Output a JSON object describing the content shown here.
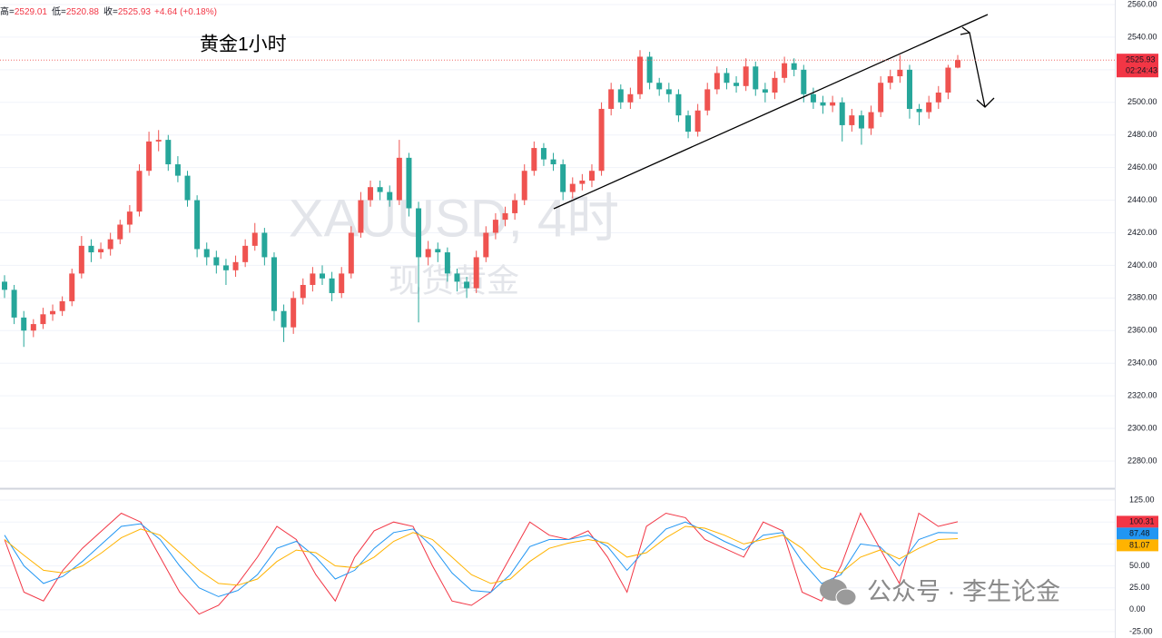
{
  "chart_data": [
    {
      "type": "candlestick",
      "header": {
        "items": [
          {
            "label": "高="
          },
          {
            "label": "低="
          },
          {
            "label": "收="
          }
        ],
        "change": "+4.64 (+0.18%)"
      },
      "annotation": "黄金1小时",
      "watermark": {
        "symbol": "XAUUSD, 4时",
        "name": "现货黄金",
        "account": "公众号 · 李生论金"
      },
      "countdown": "02:24:43",
      "up_color": "#ef5350",
      "down_color": "#26a69a",
      "ylim": [
        2263.85,
        2562.78
      ],
      "yticks": [
        {
          "value": 2280,
          "label": "2280.00"
        },
        {
          "value": 2300,
          "label": "2300.00"
        },
        {
          "value": 2320,
          "label": "2320.00"
        },
        {
          "value": 2340,
          "label": "2340.00"
        },
        {
          "value": 2360,
          "label": "2360.00"
        },
        {
          "value": 2380,
          "label": "2380.00"
        },
        {
          "value": 2400,
          "label": "2400.00"
        },
        {
          "value": 2420,
          "label": "2420.00"
        },
        {
          "value": 2440,
          "label": "2440.00"
        },
        {
          "value": 2460,
          "label": "2460.00"
        },
        {
          "value": 2480,
          "label": "2480.00"
        },
        {
          "value": 2500,
          "label": "2500.00"
        },
        {
          "value": 2520,
          "label": "2520.00"
        },
        {
          "value": 2540,
          "label": "2540.00"
        },
        {
          "value": 2560,
          "label": "2560.00"
        }
      ],
      "grid": true,
      "ohlc": [
        [
          2390,
          2394,
          2380,
          2385
        ],
        [
          2385,
          2388,
          2364,
          2368
        ],
        [
          2368,
          2372,
          2350,
          2360
        ],
        [
          2360,
          2367,
          2356,
          2364
        ],
        [
          2364,
          2374,
          2361,
          2370
        ],
        [
          2370,
          2376,
          2366,
          2372
        ],
        [
          2372,
          2381,
          2369,
          2378
        ],
        [
          2378,
          2398,
          2375,
          2395
        ],
        [
          2395,
          2418,
          2392,
          2412
        ],
        [
          2412,
          2416,
          2402,
          2408
        ],
        [
          2408,
          2414,
          2404,
          2410
        ],
        [
          2410,
          2420,
          2406,
          2416
        ],
        [
          2416,
          2428,
          2413,
          2425
        ],
        [
          2425,
          2437,
          2420,
          2433
        ],
        [
          2433,
          2462,
          2430,
          2458
        ],
        [
          2458,
          2482,
          2455,
          2476
        ],
        [
          2476,
          2483,
          2470,
          2477
        ],
        [
          2477,
          2480,
          2458,
          2462
        ],
        [
          2462,
          2467,
          2451,
          2455
        ],
        [
          2455,
          2458,
          2436,
          2440
        ],
        [
          2440,
          2443,
          2405,
          2410
        ],
        [
          2410,
          2414,
          2400,
          2405
        ],
        [
          2405,
          2409,
          2395,
          2400
        ],
        [
          2400,
          2404,
          2388,
          2397
        ],
        [
          2397,
          2406,
          2393,
          2402
        ],
        [
          2402,
          2416,
          2399,
          2412
        ],
        [
          2412,
          2426,
          2409,
          2420
        ],
        [
          2420,
          2423,
          2400,
          2405
        ],
        [
          2405,
          2408,
          2366,
          2372
        ],
        [
          2372,
          2376,
          2353,
          2362
        ],
        [
          2362,
          2384,
          2358,
          2380
        ],
        [
          2380,
          2392,
          2376,
          2388
        ],
        [
          2388,
          2399,
          2384,
          2395
        ],
        [
          2395,
          2400,
          2388,
          2392
        ],
        [
          2392,
          2396,
          2378,
          2383
        ],
        [
          2383,
          2399,
          2380,
          2395
        ],
        [
          2395,
          2424,
          2392,
          2420
        ],
        [
          2420,
          2445,
          2417,
          2440
        ],
        [
          2440,
          2452,
          2436,
          2448
        ],
        [
          2448,
          2452,
          2440,
          2445
        ],
        [
          2445,
          2449,
          2436,
          2440
        ],
        [
          2440,
          2477,
          2437,
          2466
        ],
        [
          2466,
          2469,
          2430,
          2435
        ],
        [
          2435,
          2439,
          2365,
          2405
        ],
        [
          2405,
          2415,
          2400,
          2410
        ],
        [
          2410,
          2414,
          2402,
          2408
        ],
        [
          2408,
          2411,
          2390,
          2395
        ],
        [
          2395,
          2398,
          2384,
          2390
        ],
        [
          2390,
          2393,
          2380,
          2386
        ],
        [
          2386,
          2409,
          2383,
          2405
        ],
        [
          2405,
          2424,
          2402,
          2420
        ],
        [
          2420,
          2432,
          2416,
          2428
        ],
        [
          2428,
          2436,
          2424,
          2432
        ],
        [
          2432,
          2444,
          2428,
          2440
        ],
        [
          2440,
          2462,
          2437,
          2458
        ],
        [
          2458,
          2476,
          2455,
          2472
        ],
        [
          2472,
          2475,
          2461,
          2465
        ],
        [
          2465,
          2469,
          2458,
          2462
        ],
        [
          2462,
          2465,
          2440,
          2445
        ],
        [
          2445,
          2454,
          2441,
          2450
        ],
        [
          2450,
          2456,
          2446,
          2452
        ],
        [
          2452,
          2462,
          2448,
          2458
        ],
        [
          2458,
          2500,
          2455,
          2496
        ],
        [
          2496,
          2512,
          2492,
          2508
        ],
        [
          2508,
          2511,
          2496,
          2500
        ],
        [
          2500,
          2509,
          2496,
          2505
        ],
        [
          2505,
          2532,
          2502,
          2528
        ],
        [
          2528,
          2531,
          2508,
          2512
        ],
        [
          2512,
          2515,
          2504,
          2508
        ],
        [
          2508,
          2512,
          2500,
          2505
        ],
        [
          2505,
          2508,
          2488,
          2492
        ],
        [
          2492,
          2495,
          2478,
          2482
        ],
        [
          2482,
          2499,
          2479,
          2495
        ],
        [
          2495,
          2512,
          2492,
          2508
        ],
        [
          2508,
          2522,
          2505,
          2518
        ],
        [
          2518,
          2521,
          2508,
          2512
        ],
        [
          2512,
          2516,
          2506,
          2510
        ],
        [
          2510,
          2527,
          2507,
          2522
        ],
        [
          2522,
          2525,
          2504,
          2508
        ],
        [
          2508,
          2512,
          2500,
          2506
        ],
        [
          2506,
          2519,
          2502,
          2515
        ],
        [
          2515,
          2528,
          2512,
          2524
        ],
        [
          2524,
          2527,
          2516,
          2520
        ],
        [
          2520,
          2523,
          2500,
          2505
        ],
        [
          2505,
          2509,
          2496,
          2500
        ],
        [
          2500,
          2504,
          2493,
          2498
        ],
        [
          2498,
          2504,
          2494,
          2500
        ],
        [
          2500,
          2503,
          2476,
          2486
        ],
        [
          2486,
          2496,
          2482,
          2492
        ],
        [
          2492,
          2495,
          2474,
          2484
        ],
        [
          2484,
          2498,
          2480,
          2494
        ],
        [
          2494,
          2516,
          2491,
          2512
        ],
        [
          2512,
          2520,
          2508,
          2516
        ],
        [
          2516,
          2529,
          2512,
          2520
        ],
        [
          2520,
          2523,
          2490,
          2496
        ],
        [
          2496,
          2499,
          2486,
          2494
        ],
        [
          2494,
          2504,
          2490,
          2500
        ],
        [
          2500,
          2510,
          2496,
          2506
        ],
        [
          2506,
          2523,
          2502,
          2521.29
        ],
        [
          2521.29,
          2529.01,
          2520.88,
          2525.93
        ]
      ]
    },
    {
      "type": "line",
      "ylim": [
        -32.2,
        136.4
      ],
      "yticks": [
        {
          "value": -25,
          "label": "-25.00"
        },
        {
          "value": 0,
          "label": "0.00"
        },
        {
          "value": 25,
          "label": "25.00"
        },
        {
          "value": 50,
          "label": "50.00"
        },
        {
          "value": 75,
          "label": "75.00"
        },
        {
          "value": 100,
          "label": "100.00"
        },
        {
          "value": 125,
          "label": "125.00"
        }
      ],
      "series": [
        {
          "color": "#f23645",
          "values": [
            80,
            20,
            10,
            45,
            70,
            90,
            110,
            100,
            60,
            20,
            -5,
            5,
            30,
            60,
            95,
            80,
            40,
            10,
            60,
            90,
            100,
            95,
            50,
            10,
            5,
            20,
            60,
            100,
            85,
            80,
            90,
            60,
            20,
            95,
            110,
            105,
            80,
            70,
            60,
            100,
            90,
            20,
            10,
            50,
            110,
            70,
            30,
            110,
            95,
            100.31
          ]
        },
        {
          "color": "#2196f3",
          "values": [
            85,
            50,
            30,
            38,
            55,
            75,
            95,
            98,
            80,
            50,
            25,
            15,
            22,
            40,
            70,
            78,
            60,
            35,
            45,
            70,
            88,
            92,
            72,
            42,
            22,
            20,
            40,
            72,
            80,
            80,
            85,
            72,
            45,
            70,
            92,
            100,
            90,
            78,
            68,
            85,
            88,
            55,
            30,
            40,
            75,
            72,
            50,
            80,
            88,
            87.48
          ]
        },
        {
          "color": "#ffb300",
          "values": [
            80,
            62,
            45,
            42,
            50,
            65,
            82,
            92,
            85,
            65,
            45,
            30,
            28,
            35,
            55,
            68,
            65,
            50,
            48,
            60,
            78,
            88,
            80,
            60,
            40,
            30,
            35,
            55,
            70,
            76,
            80,
            76,
            60,
            65,
            82,
            95,
            93,
            85,
            75,
            80,
            85,
            70,
            48,
            42,
            60,
            68,
            58,
            70,
            80,
            81.07
          ]
        }
      ]
    }
  ]
}
